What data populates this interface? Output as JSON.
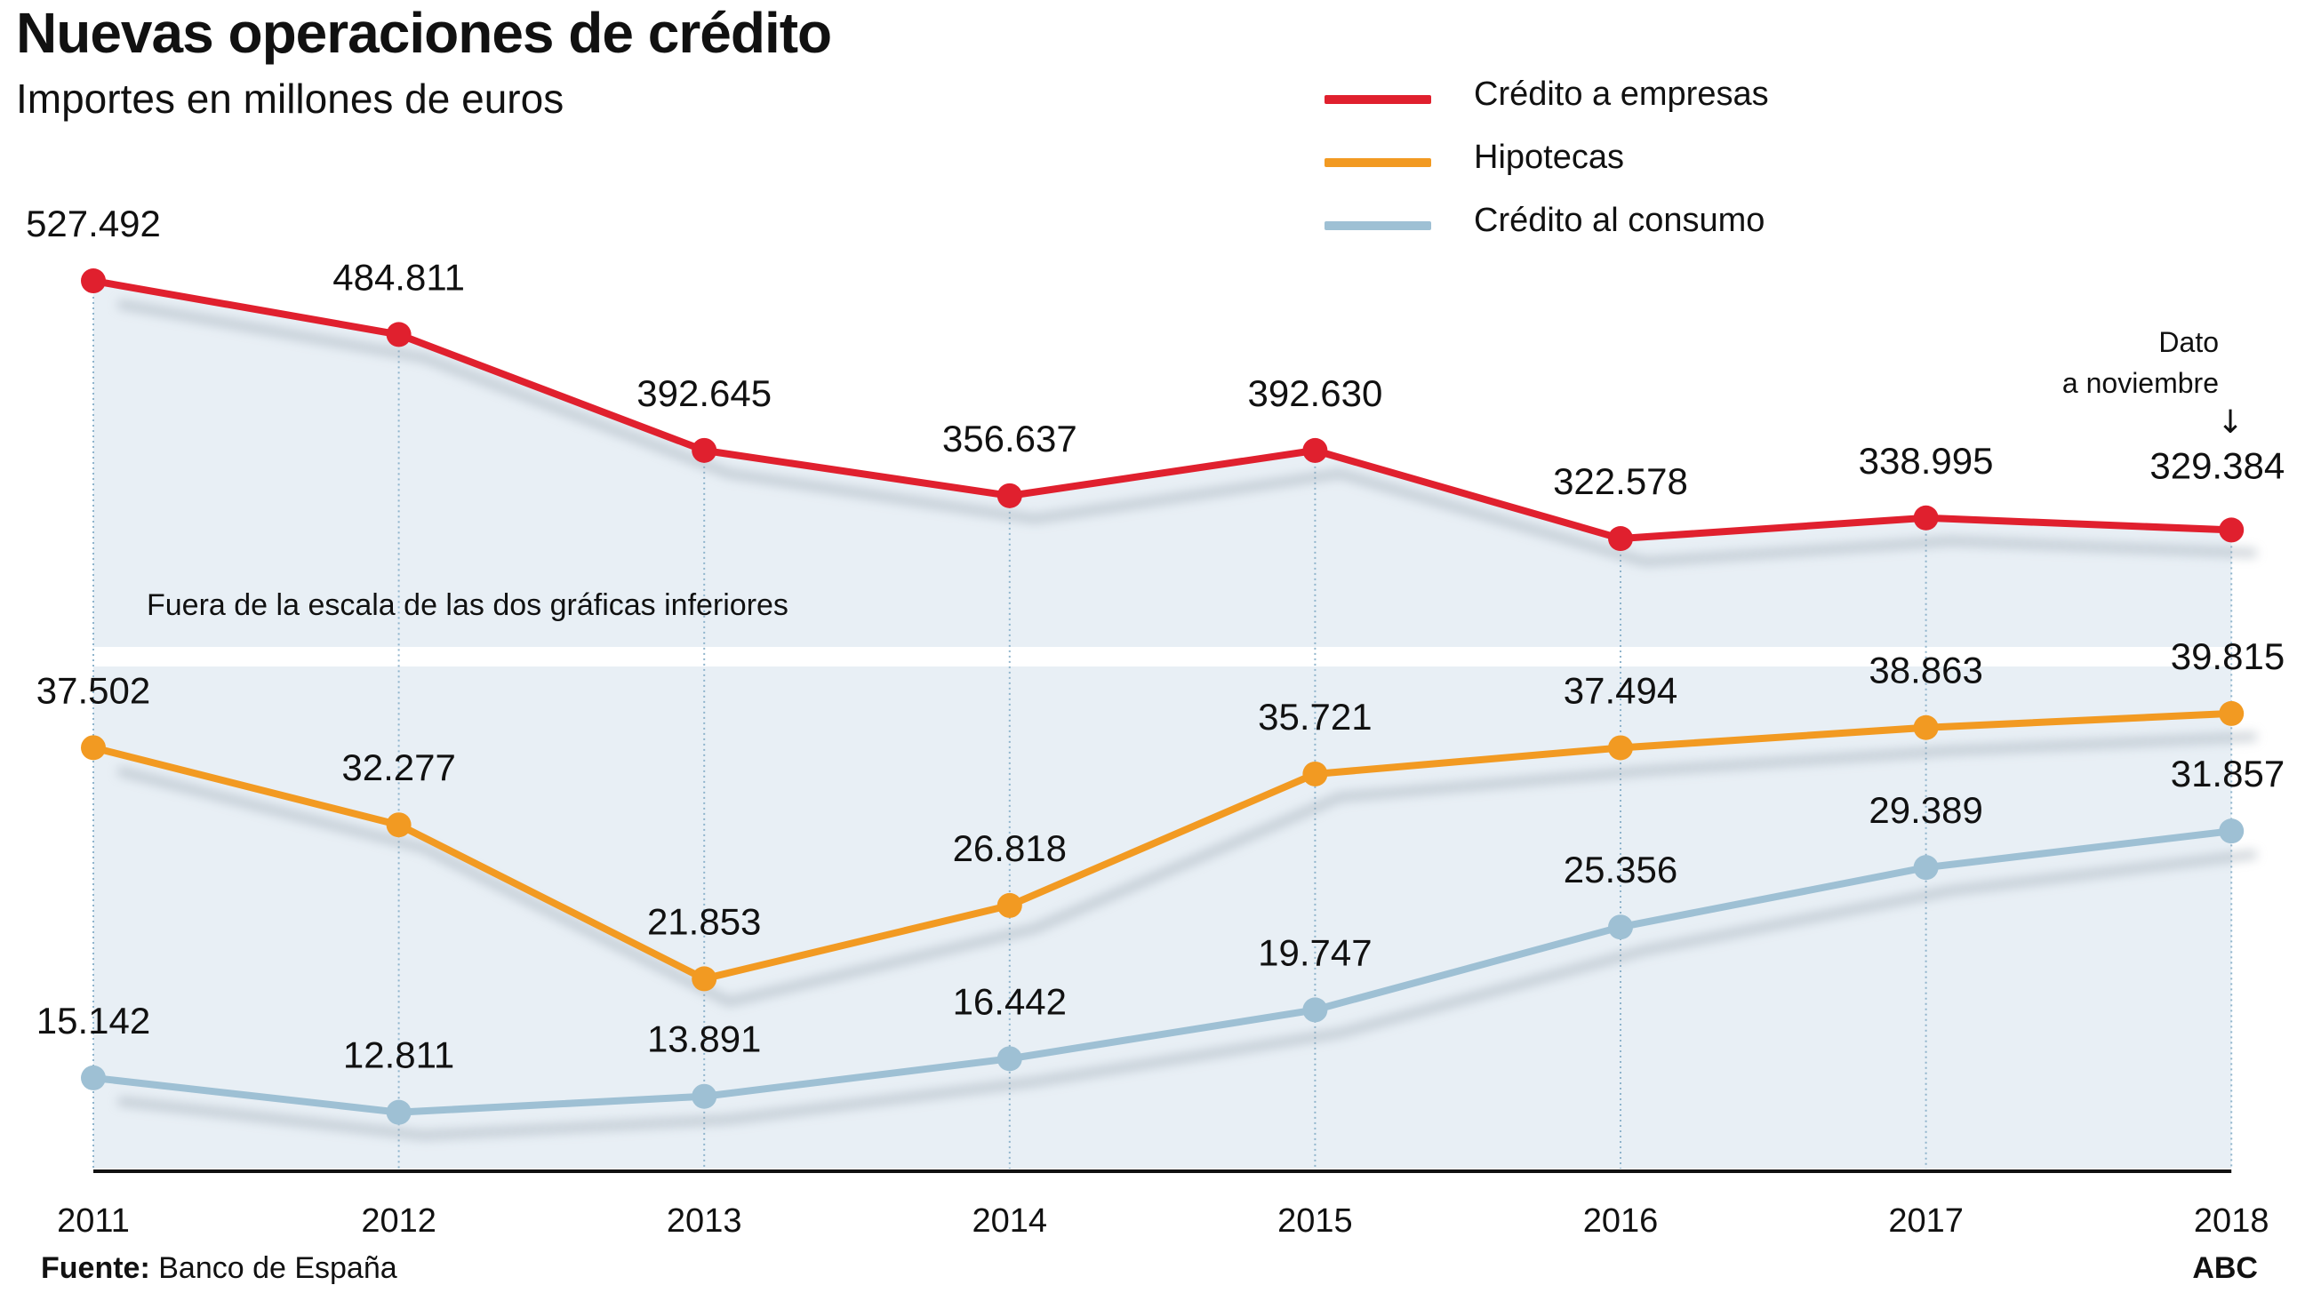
{
  "header": {
    "title": "Nuevas operaciones de crédito",
    "subtitle": "Importes en millones de euros"
  },
  "legend": [
    {
      "label": "Crédito a empresas",
      "color": "#e0202e"
    },
    {
      "label": "Hipotecas",
      "color": "#f29a22"
    },
    {
      "label": "Crédito al consumo",
      "color": "#9ec0d4"
    }
  ],
  "notes": {
    "scale_note": "Fuera de la escala de las dos gráficas inferiores",
    "data_note_line1": "Dato",
    "data_note_line2": "a noviembre",
    "data_note_arrow": "↓"
  },
  "footer": {
    "source_label": "Fuente:",
    "source_text": " Banco de España",
    "brand": "ABC"
  },
  "chart_data": {
    "type": "line",
    "x": [
      "2011",
      "2012",
      "2013",
      "2014",
      "2015",
      "2016",
      "2017",
      "2018"
    ],
    "series": [
      {
        "name": "Crédito a empresas",
        "color": "#e0202e",
        "values": [
          527492,
          484811,
          392645,
          356637,
          392630,
          322578,
          338995,
          329384
        ],
        "labels": [
          "527.492",
          "484.811",
          "392.645",
          "356.637",
          "392.630",
          "322.578",
          "338.995",
          "329.384"
        ],
        "ylim": [
          235000,
          560000
        ],
        "panel": "top"
      },
      {
        "name": "Hipotecas",
        "color": "#f29a22",
        "values": [
          37502,
          32277,
          21853,
          26818,
          35721,
          37494,
          38863,
          39815
        ],
        "labels": [
          "37.502",
          "32.277",
          "21.853",
          "26.818",
          "35.721",
          "37.494",
          "38.863",
          "39.815"
        ],
        "ylim": [
          9000,
          43000
        ],
        "panel": "bottom"
      },
      {
        "name": "Crédito al consumo",
        "color": "#9ec0d4",
        "values": [
          15142,
          12811,
          13891,
          16442,
          19747,
          25356,
          29389,
          31857
        ],
        "labels": [
          "15.142",
          "12.811",
          "13.891",
          "16.442",
          "19.747",
          "25.356",
          "29.389",
          "31.857"
        ],
        "ylim": [
          9000,
          43000
        ],
        "panel": "bottom"
      }
    ],
    "grid": "vertical dotted"
  }
}
